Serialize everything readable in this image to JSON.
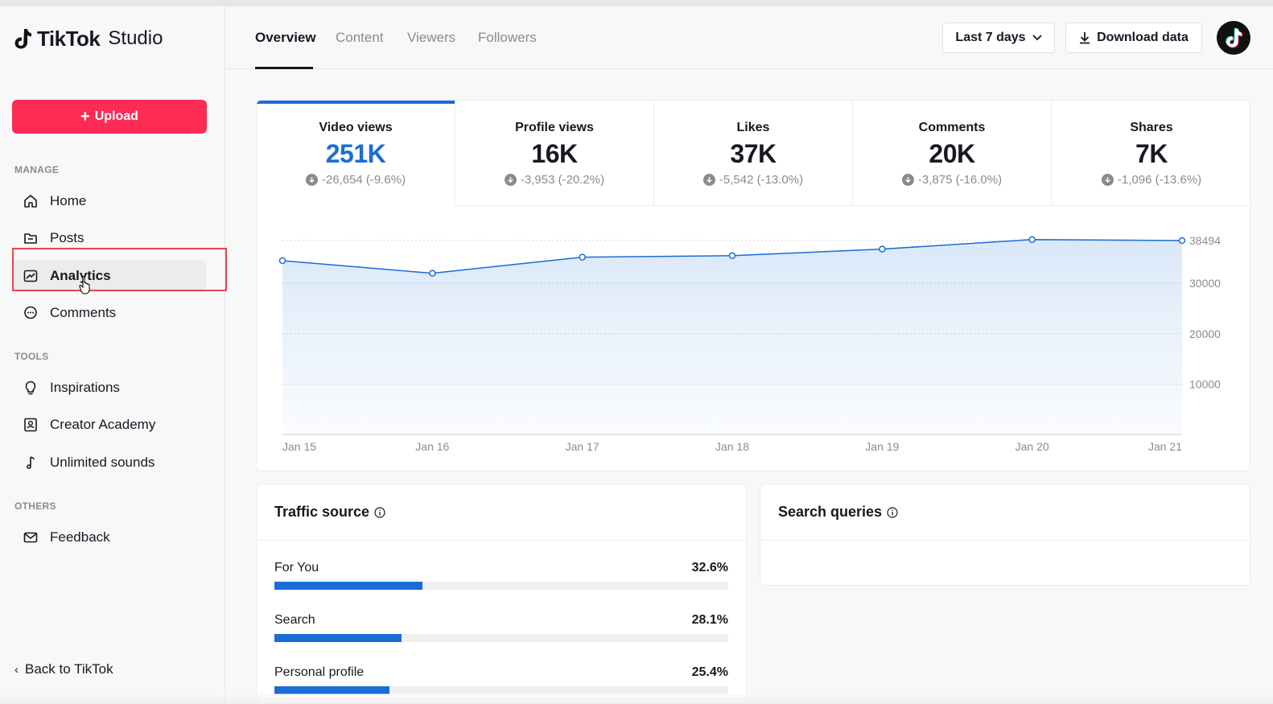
{
  "app": {
    "brand": "TikTok",
    "product": "Studio"
  },
  "sidebar": {
    "upload_label": "Upload",
    "sections": [
      {
        "label": "MANAGE"
      },
      {
        "label": "TOOLS"
      },
      {
        "label": "OTHERS"
      }
    ],
    "items": [
      {
        "label": "Home",
        "icon": "home-icon"
      },
      {
        "label": "Posts",
        "icon": "folder-icon"
      },
      {
        "label": "Analytics",
        "icon": "analytics-icon",
        "active": true
      },
      {
        "label": "Comments",
        "icon": "comment-icon"
      },
      {
        "label": "Inspirations",
        "icon": "lightbulb-icon"
      },
      {
        "label": "Creator Academy",
        "icon": "academy-icon"
      },
      {
        "label": "Unlimited sounds",
        "icon": "music-note-icon"
      },
      {
        "label": "Feedback",
        "icon": "mail-icon"
      }
    ],
    "back_label": "Back to TikTok"
  },
  "header": {
    "tabs": [
      {
        "label": "Overview",
        "active": true
      },
      {
        "label": "Content"
      },
      {
        "label": "Viewers"
      },
      {
        "label": "Followers"
      }
    ],
    "range_label": "Last 7 days",
    "download_label": "Download data"
  },
  "metrics": [
    {
      "label": "Video views",
      "value": "251K",
      "delta": "-26,654 (-9.6%)",
      "active": true
    },
    {
      "label": "Profile views",
      "value": "16K",
      "delta": "-3,953 (-20.2%)"
    },
    {
      "label": "Likes",
      "value": "37K",
      "delta": "-5,542 (-13.0%)"
    },
    {
      "label": "Comments",
      "value": "20K",
      "delta": "-3,875 (-16.0%)"
    },
    {
      "label": "Shares",
      "value": "7K",
      "delta": "-1,096 (-13.6%)"
    }
  ],
  "chart_data": {
    "type": "area",
    "x": [
      "Jan 15",
      "Jan 16",
      "Jan 17",
      "Jan 18",
      "Jan 19",
      "Jan 20",
      "Jan 21"
    ],
    "series": [
      {
        "values": [
          34500,
          32000,
          35200,
          35500,
          36800,
          38700,
          38494
        ]
      }
    ],
    "y_ticks": [
      10000,
      20000,
      30000,
      38494
    ],
    "ylim": [
      0,
      38494
    ],
    "grid": true,
    "color": "#1a6dd6"
  },
  "traffic_source": {
    "title": "Traffic source",
    "rows": [
      {
        "name": "For You",
        "pct_label": "32.6%",
        "pct": 32.6
      },
      {
        "name": "Search",
        "pct_label": "28.1%",
        "pct": 28.1
      },
      {
        "name": "Personal profile",
        "pct_label": "25.4%",
        "pct": 25.4
      }
    ]
  },
  "search_queries": {
    "title": "Search queries"
  },
  "colors": {
    "accent": "#1a6dd6",
    "upload": "#fe2c55",
    "highlight": "#e5484d"
  }
}
